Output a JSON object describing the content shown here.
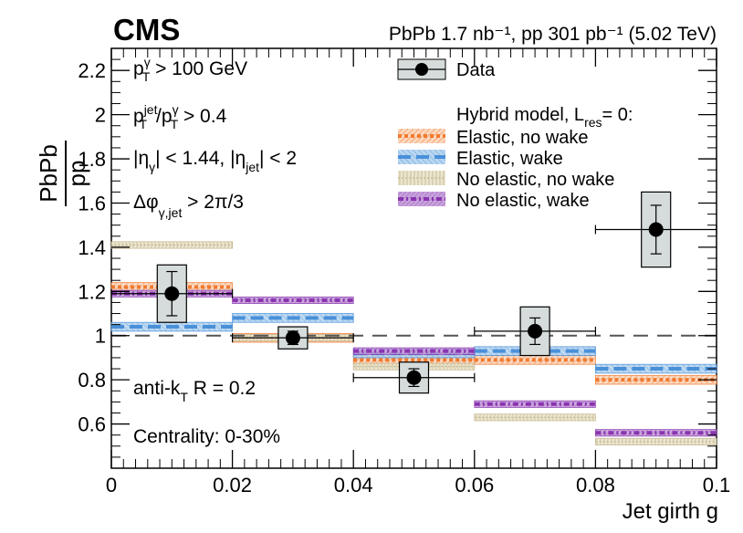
{
  "chart_data": {
    "type": "step-histogram",
    "experiment": "CMS",
    "header": "PbPb 1.7 nb⁻¹, pp 301 pb⁻¹ (5.02 TeV)",
    "xlabel": "Jet girth g",
    "ylabel": "PbPb / pp",
    "xlim": [
      0,
      0.1
    ],
    "ylim": [
      0.4,
      2.3
    ],
    "x_ticks": [
      "0",
      "0.02",
      "0.04",
      "0.06",
      "0.08",
      "0.1"
    ],
    "y_ticks": [
      "0.6",
      "0.8",
      "1",
      "1.2",
      "1.4",
      "1.6",
      "1.8",
      "2",
      "2.2"
    ],
    "reference_line": 1.0,
    "bin_edges": [
      0,
      0.02,
      0.04,
      0.06,
      0.08,
      0.1
    ],
    "data": {
      "name": "Data",
      "x": [
        0.01,
        0.03,
        0.05,
        0.07,
        0.09
      ],
      "y": [
        1.19,
        0.99,
        0.81,
        1.02,
        1.48
      ],
      "stat_err": [
        0.1,
        0.03,
        0.04,
        0.06,
        0.11
      ],
      "syst_err": [
        0.13,
        0.05,
        0.07,
        0.11,
        0.17
      ]
    },
    "model_title": "Hybrid model, L_res = 0:",
    "series": [
      {
        "name": "Elastic, no wake",
        "color": "#f07a30",
        "fill": "#fdd7bd",
        "values": [
          1.22,
          0.99,
          0.89,
          0.89,
          0.8
        ],
        "band": 0.02
      },
      {
        "name": "Elastic, wake",
        "color": "#4a90d9",
        "fill": "#b9d7f1",
        "values": [
          1.04,
          1.08,
          0.92,
          0.93,
          0.85
        ],
        "band": 0.02
      },
      {
        "name": "No elastic, no wake",
        "color": "#c2b48a",
        "fill": "#ece6d0",
        "values": [
          1.41,
          0.99,
          0.86,
          0.63,
          0.52
        ],
        "band": 0.015
      },
      {
        "name": "No elastic, wake",
        "color": "#8a35b0",
        "fill": "#c8a3dc",
        "values": [
          1.19,
          1.16,
          0.93,
          0.69,
          0.56
        ],
        "band": 0.015
      }
    ],
    "selection_text": {
      "pt_label": "p",
      "pt_sub": "T",
      "pt_sup": "γ",
      "pt_cut": " > 100 GeV",
      "ratio_num_sup": "jet",
      "ratio_den_sup": "γ",
      "ratio_cut": " > 0.4",
      "eta_text_a": "|η",
      "eta_sub_gamma": "γ",
      "eta_text_b": "| < 1.44, |η",
      "eta_sub_jet": "jet",
      "eta_text_c": "| < 2",
      "dphi_text": "Δφ",
      "dphi_sub": "γ,jet",
      "dphi_cut": " > 2π/3",
      "jet_alg": "anti-k",
      "jet_alg_sub": "T",
      "jet_radius": " R = 0.2",
      "centrality": "Centrality: 0-30%"
    },
    "legend_data": "Data"
  }
}
